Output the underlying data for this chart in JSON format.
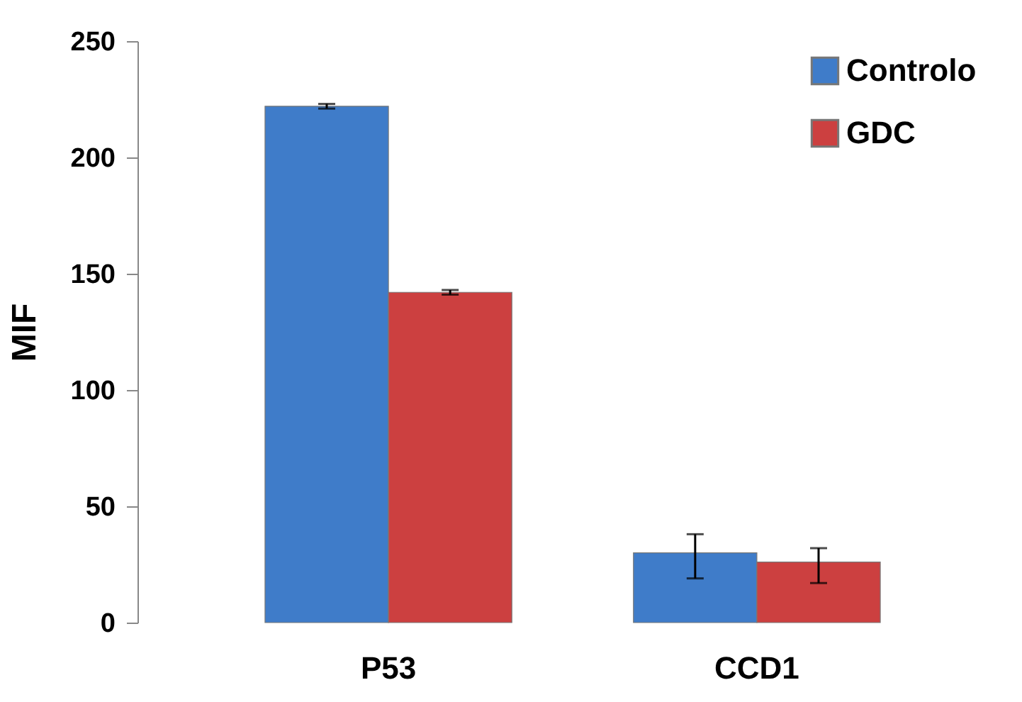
{
  "chart_data": {
    "type": "bar",
    "ylabel": "MIF",
    "categories": [
      "P53",
      "CCD1"
    ],
    "series": [
      {
        "name": "Controlo",
        "color": "#3f7cc9",
        "values": [
          222,
          30
        ],
        "errors": [
          1,
          [
            19,
            38
          ]
        ]
      },
      {
        "name": "GDC",
        "color": "#cc4040",
        "values": [
          142,
          26
        ],
        "errors": [
          1,
          [
            17,
            32
          ]
        ]
      }
    ],
    "ylim": [
      0,
      250
    ],
    "yticks": [
      0,
      50,
      100,
      150,
      200,
      250
    ],
    "grid": false,
    "legend": "top right"
  }
}
